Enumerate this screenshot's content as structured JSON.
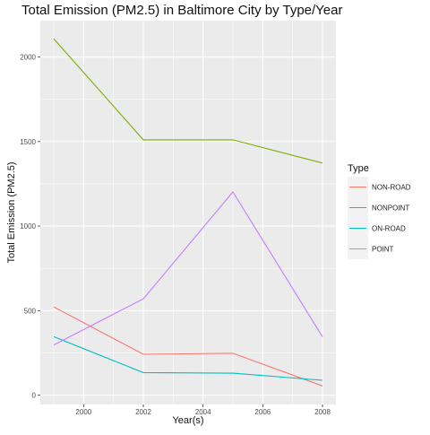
{
  "chart_data": {
    "type": "line",
    "title": "Total Emission (PM2.5) in Baltimore City by Type/Year",
    "xlabel": "Year(s)",
    "ylabel": "Total Emission (PM2.5)",
    "x": [
      1999,
      2002,
      2005,
      2008
    ],
    "xlim": [
      1998.55,
      2008.45
    ],
    "ylim": [
      -55,
      2215
    ],
    "xticks": [
      2000,
      2002,
      2004,
      2006,
      2008
    ],
    "yticks": [
      0,
      500,
      1000,
      1500,
      2000
    ],
    "grid": true,
    "legend": {
      "title": "Type",
      "position": "right"
    },
    "series": [
      {
        "name": "NON-ROAD",
        "color": "#F8766D",
        "values": [
          522,
          242,
          248,
          55
        ]
      },
      {
        "name": "NONPOINT",
        "color": "#7CAE00",
        "values": [
          2108,
          1510,
          1510,
          1373
        ]
      },
      {
        "name": "ON-ROAD",
        "color": "#00BFC4",
        "values": [
          346,
          134,
          130,
          88
        ]
      },
      {
        "name": "POINT",
        "color": "#C77CFF",
        "values": [
          297,
          570,
          1202,
          345
        ]
      }
    ]
  }
}
